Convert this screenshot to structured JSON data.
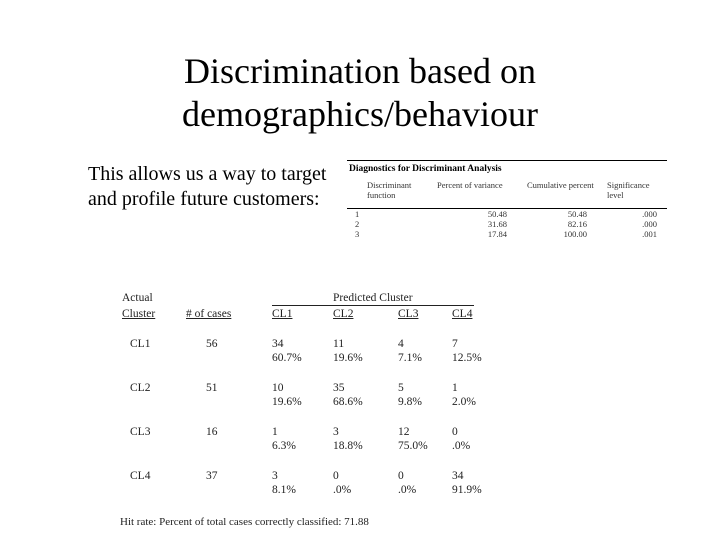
{
  "slide": {
    "title_line1": "Discrimination based on",
    "title_line2": "demographics/behaviour",
    "intro_text": "This allows us a way to target and profile future customers:"
  },
  "diagnostics": {
    "title": "Diagnostics for Discriminant Analysis",
    "headers": [
      "Discriminant function",
      "Percent of variance",
      "Cumulative percent",
      "Significance level"
    ],
    "rows": [
      [
        "1",
        "50.48",
        "50.48",
        ".000"
      ],
      [
        "2",
        "31.68",
        "82.16",
        ".000"
      ],
      [
        "3",
        "17.84",
        "100.00",
        ".001"
      ]
    ]
  },
  "classification": {
    "header_actual": "Actual",
    "header_cluster": "Cluster",
    "header_cases": "# of cases",
    "header_predicted": "Predicted Cluster",
    "predicted_cols": [
      "CL1",
      "CL2",
      "CL3",
      "CL4"
    ],
    "rows": [
      {
        "cluster": "CL1",
        "cases": "56",
        "counts": [
          "34",
          "11",
          "4",
          "7"
        ],
        "pcts": [
          "60.7%",
          "19.6%",
          "7.1%",
          "12.5%"
        ]
      },
      {
        "cluster": "CL2",
        "cases": "51",
        "counts": [
          "10",
          "35",
          "5",
          "1"
        ],
        "pcts": [
          "19.6%",
          "68.6%",
          "9.8%",
          "2.0%"
        ]
      },
      {
        "cluster": "CL3",
        "cases": "16",
        "counts": [
          "1",
          "3",
          "12",
          "0"
        ],
        "pcts": [
          "6.3%",
          "18.8%",
          "75.0%",
          ".0%"
        ]
      },
      {
        "cluster": "CL4",
        "cases": "37",
        "counts": [
          "3",
          "0",
          "0",
          "34"
        ],
        "pcts": [
          "8.1%",
          ".0%",
          ".0%",
          "91.9%"
        ]
      }
    ],
    "hit_rate": "Hit rate: Percent of total cases correctly classified: 71.88"
  }
}
